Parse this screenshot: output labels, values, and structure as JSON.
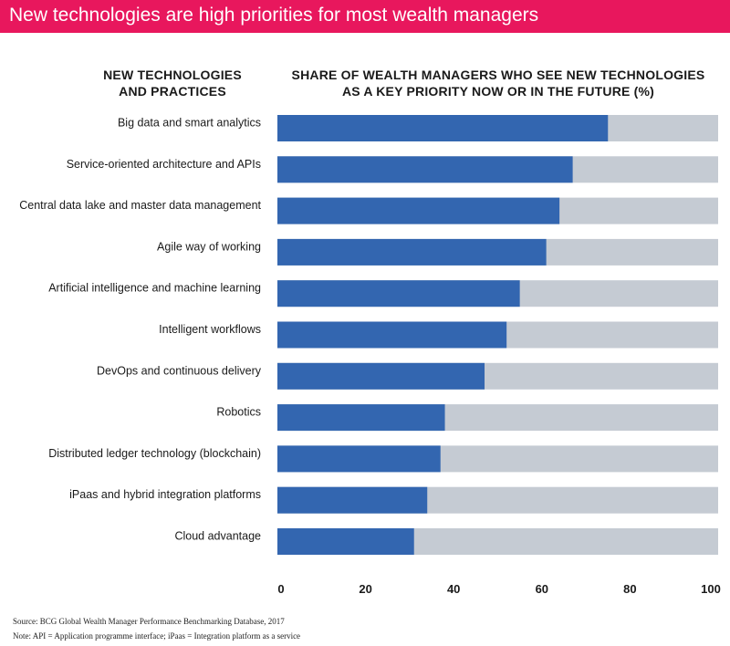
{
  "banner": {
    "title": "New technologies are high priorities for most wealth managers",
    "color": "#e8175d"
  },
  "headers": {
    "left_line1": "NEW TECHNOLOGIES",
    "left_line2": "AND PRACTICES",
    "right_line1": "SHARE OF WEALTH MANAGERS WHO SEE NEW TECHNOLOGIES",
    "right_line2": "AS A KEY PRIORITY NOW OR IN THE FUTURE (%)"
  },
  "footnotes": {
    "source": "Source:  BCG Global Wealth Manager Performance Benchmarking Database, 2017",
    "note": "Note:  API = Application programme interface; iPaas = Integration platform as a service"
  },
  "chart_data": {
    "type": "bar",
    "orientation": "horizontal",
    "stacked_to": 100,
    "categories": [
      "Big data and smart analytics",
      "Service-oriented architecture and APIs",
      "Central data lake and master data management",
      "Agile way of working",
      "Artificial intelligence and machine learning",
      "Intelligent workflows",
      "DevOps and continuous delivery",
      "Robotics",
      "Distributed ledger technology (blockchain)",
      "iPaas and hybrid integration platforms",
      "Cloud advantage"
    ],
    "values": [
      75,
      67,
      64,
      61,
      55,
      52,
      47,
      38,
      37,
      34,
      31
    ],
    "xlim": [
      0,
      100
    ],
    "xticks": [
      "0",
      "20",
      "40",
      "60",
      "80",
      "100"
    ],
    "grid": false,
    "bar_color": "#3366b0",
    "remainder_color": "#c5cbd3"
  }
}
